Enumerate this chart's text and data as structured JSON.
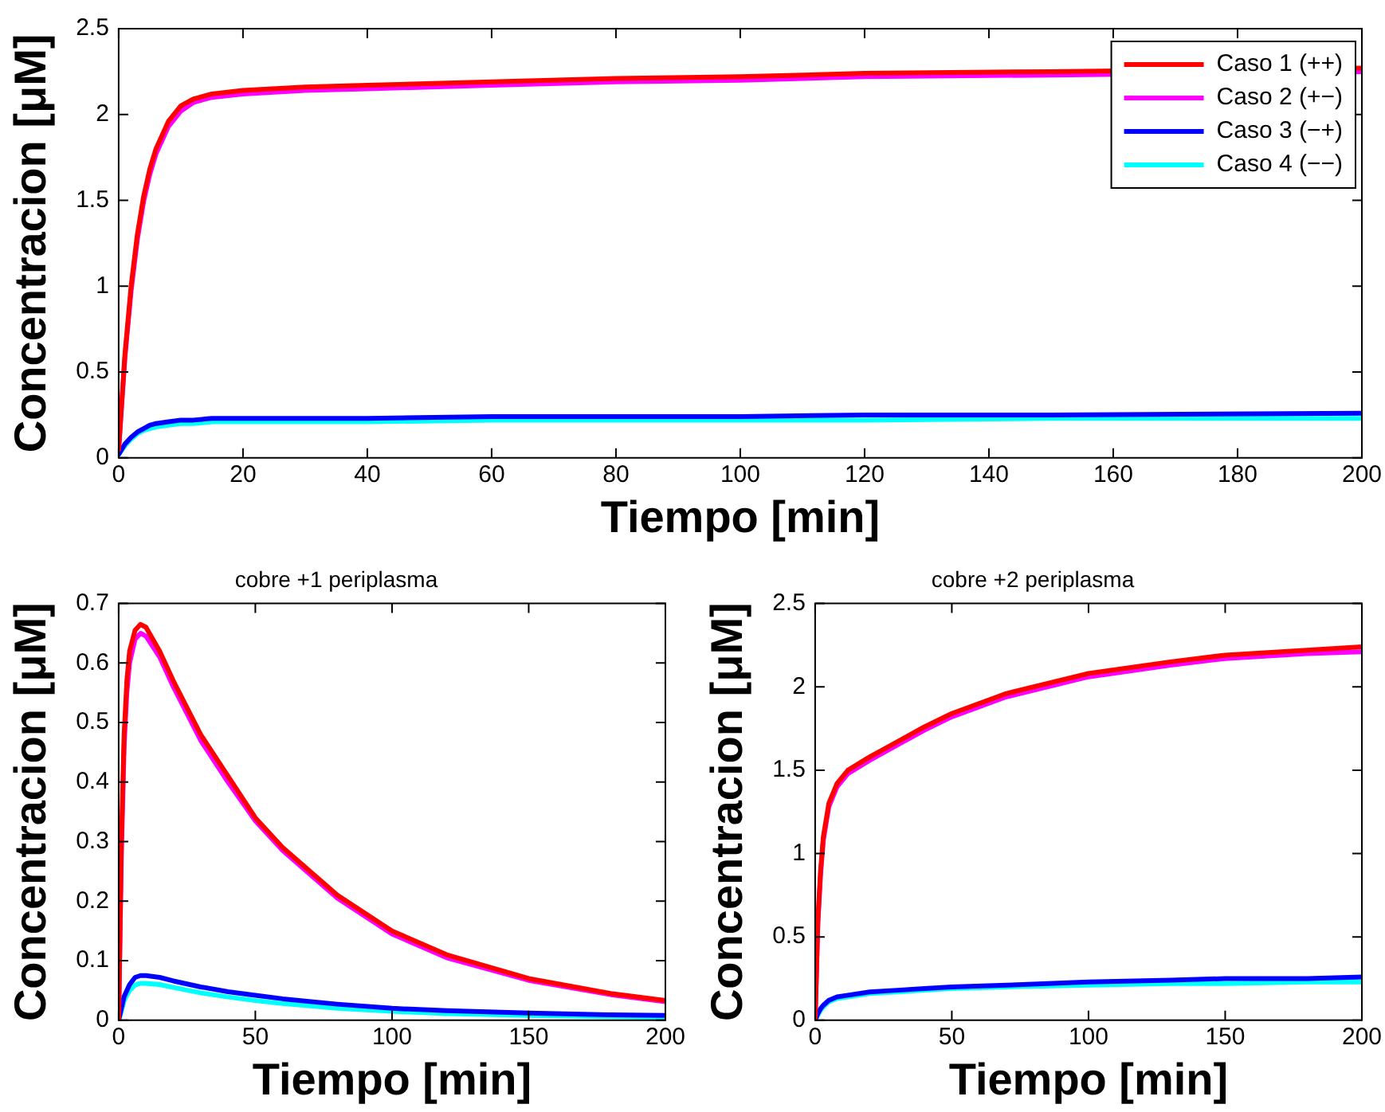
{
  "chart_data": [
    {
      "type": "line",
      "xlabel": "Tiempo [min]",
      "ylabel": "Concentracion [μM]",
      "legend": "top right",
      "grid": false,
      "marker": "none",
      "line_style": "solid",
      "x": [
        0,
        1,
        2,
        3,
        4,
        5,
        6,
        8,
        10,
        12,
        15,
        20,
        30,
        40,
        60,
        80,
        100,
        120,
        150,
        200
      ],
      "xlim": [
        0,
        200
      ],
      "xticks": [
        0,
        20,
        40,
        60,
        80,
        100,
        120,
        140,
        160,
        180,
        200
      ],
      "ylim": [
        0,
        2.5
      ],
      "yticks": [
        0,
        0.5,
        1,
        1.5,
        2,
        2.5
      ],
      "series": [
        {
          "name": "Caso 1 (++)",
          "color": "#ff0000",
          "values": [
            0.05,
            0.6,
            1.0,
            1.3,
            1.52,
            1.68,
            1.8,
            1.96,
            2.05,
            2.09,
            2.12,
            2.14,
            2.16,
            2.17,
            2.19,
            2.21,
            2.22,
            2.24,
            2.25,
            2.27
          ]
        },
        {
          "name": "Caso 2 (+−)",
          "color": "#ff00ff",
          "values": [
            0.05,
            0.58,
            0.97,
            1.27,
            1.49,
            1.65,
            1.77,
            1.93,
            2.02,
            2.07,
            2.1,
            2.12,
            2.14,
            2.15,
            2.17,
            2.19,
            2.2,
            2.22,
            2.23,
            2.25
          ]
        },
        {
          "name": "Caso 3 (−+)",
          "color": "#0000ff",
          "values": [
            0.02,
            0.08,
            0.12,
            0.15,
            0.17,
            0.19,
            0.2,
            0.21,
            0.22,
            0.22,
            0.23,
            0.23,
            0.23,
            0.23,
            0.24,
            0.24,
            0.24,
            0.25,
            0.25,
            0.26
          ]
        },
        {
          "name": "Caso 4 (−−)",
          "color": "#00ffff",
          "values": [
            0.02,
            0.07,
            0.11,
            0.14,
            0.16,
            0.17,
            0.18,
            0.19,
            0.2,
            0.2,
            0.21,
            0.21,
            0.21,
            0.21,
            0.22,
            0.22,
            0.22,
            0.22,
            0.23,
            0.23
          ]
        }
      ]
    },
    {
      "type": "line",
      "title": "cobre +1 periplasma",
      "xlabel": "Tiempo [min]",
      "ylabel": "Concentracion [μM]",
      "grid": false,
      "marker": "none",
      "line_style": "solid",
      "x": [
        0,
        1,
        2,
        3,
        4,
        6,
        8,
        10,
        15,
        20,
        30,
        40,
        50,
        60,
        80,
        100,
        120,
        150,
        180,
        200
      ],
      "xlim": [
        0,
        200
      ],
      "xticks": [
        0,
        50,
        100,
        150,
        200
      ],
      "ylim": [
        0,
        0.7
      ],
      "yticks": [
        0,
        0.1,
        0.2,
        0.3,
        0.4,
        0.5,
        0.6,
        0.7
      ],
      "series": [
        {
          "color": "#ff0000",
          "values": [
            0,
            0.3,
            0.48,
            0.57,
            0.62,
            0.655,
            0.665,
            0.66,
            0.62,
            0.57,
            0.48,
            0.41,
            0.34,
            0.29,
            0.21,
            0.15,
            0.11,
            0.07,
            0.045,
            0.033
          ]
        },
        {
          "color": "#ff00ff",
          "values": [
            0,
            0.28,
            0.46,
            0.55,
            0.6,
            0.64,
            0.65,
            0.645,
            0.61,
            0.56,
            0.47,
            0.4,
            0.335,
            0.285,
            0.205,
            0.145,
            0.105,
            0.067,
            0.043,
            0.031
          ]
        },
        {
          "color": "#0000ff",
          "values": [
            0,
            0.02,
            0.04,
            0.05,
            0.06,
            0.072,
            0.075,
            0.075,
            0.072,
            0.066,
            0.056,
            0.048,
            0.042,
            0.036,
            0.027,
            0.02,
            0.016,
            0.012,
            0.009,
            0.008
          ]
        },
        {
          "color": "#00ffff",
          "values": [
            0,
            0.015,
            0.033,
            0.042,
            0.05,
            0.059,
            0.062,
            0.062,
            0.06,
            0.055,
            0.046,
            0.039,
            0.033,
            0.028,
            0.02,
            0.015,
            0.011,
            0.008,
            0.006,
            0.005
          ]
        }
      ]
    },
    {
      "type": "line",
      "title": "cobre +2 periplasma",
      "xlabel": "Tiempo [min]",
      "ylabel": "Concentracion [μM]",
      "grid": false,
      "marker": "none",
      "line_style": "solid",
      "x": [
        0,
        1,
        2,
        3,
        5,
        8,
        12,
        20,
        30,
        40,
        50,
        70,
        100,
        130,
        150,
        180,
        200
      ],
      "xlim": [
        0,
        200
      ],
      "xticks": [
        0,
        50,
        100,
        150,
        200
      ],
      "ylim": [
        0,
        2.5
      ],
      "yticks": [
        0,
        0.5,
        1,
        1.5,
        2,
        2.5
      ],
      "series": [
        {
          "color": "#ff0000",
          "values": [
            0,
            0.6,
            0.9,
            1.1,
            1.3,
            1.42,
            1.5,
            1.58,
            1.67,
            1.76,
            1.84,
            1.96,
            2.08,
            2.15,
            2.19,
            2.22,
            2.24
          ]
        },
        {
          "color": "#ff00ff",
          "values": [
            0,
            0.58,
            0.88,
            1.08,
            1.28,
            1.4,
            1.48,
            1.56,
            1.65,
            1.74,
            1.82,
            1.94,
            2.06,
            2.13,
            2.17,
            2.2,
            2.21
          ]
        },
        {
          "color": "#0000ff",
          "values": [
            0,
            0.04,
            0.07,
            0.09,
            0.12,
            0.14,
            0.15,
            0.17,
            0.18,
            0.19,
            0.2,
            0.21,
            0.23,
            0.24,
            0.25,
            0.25,
            0.26
          ]
        },
        {
          "color": "#00ffff",
          "values": [
            0,
            0.03,
            0.06,
            0.08,
            0.11,
            0.13,
            0.14,
            0.16,
            0.17,
            0.18,
            0.19,
            0.2,
            0.21,
            0.22,
            0.22,
            0.23,
            0.23
          ]
        }
      ]
    }
  ]
}
